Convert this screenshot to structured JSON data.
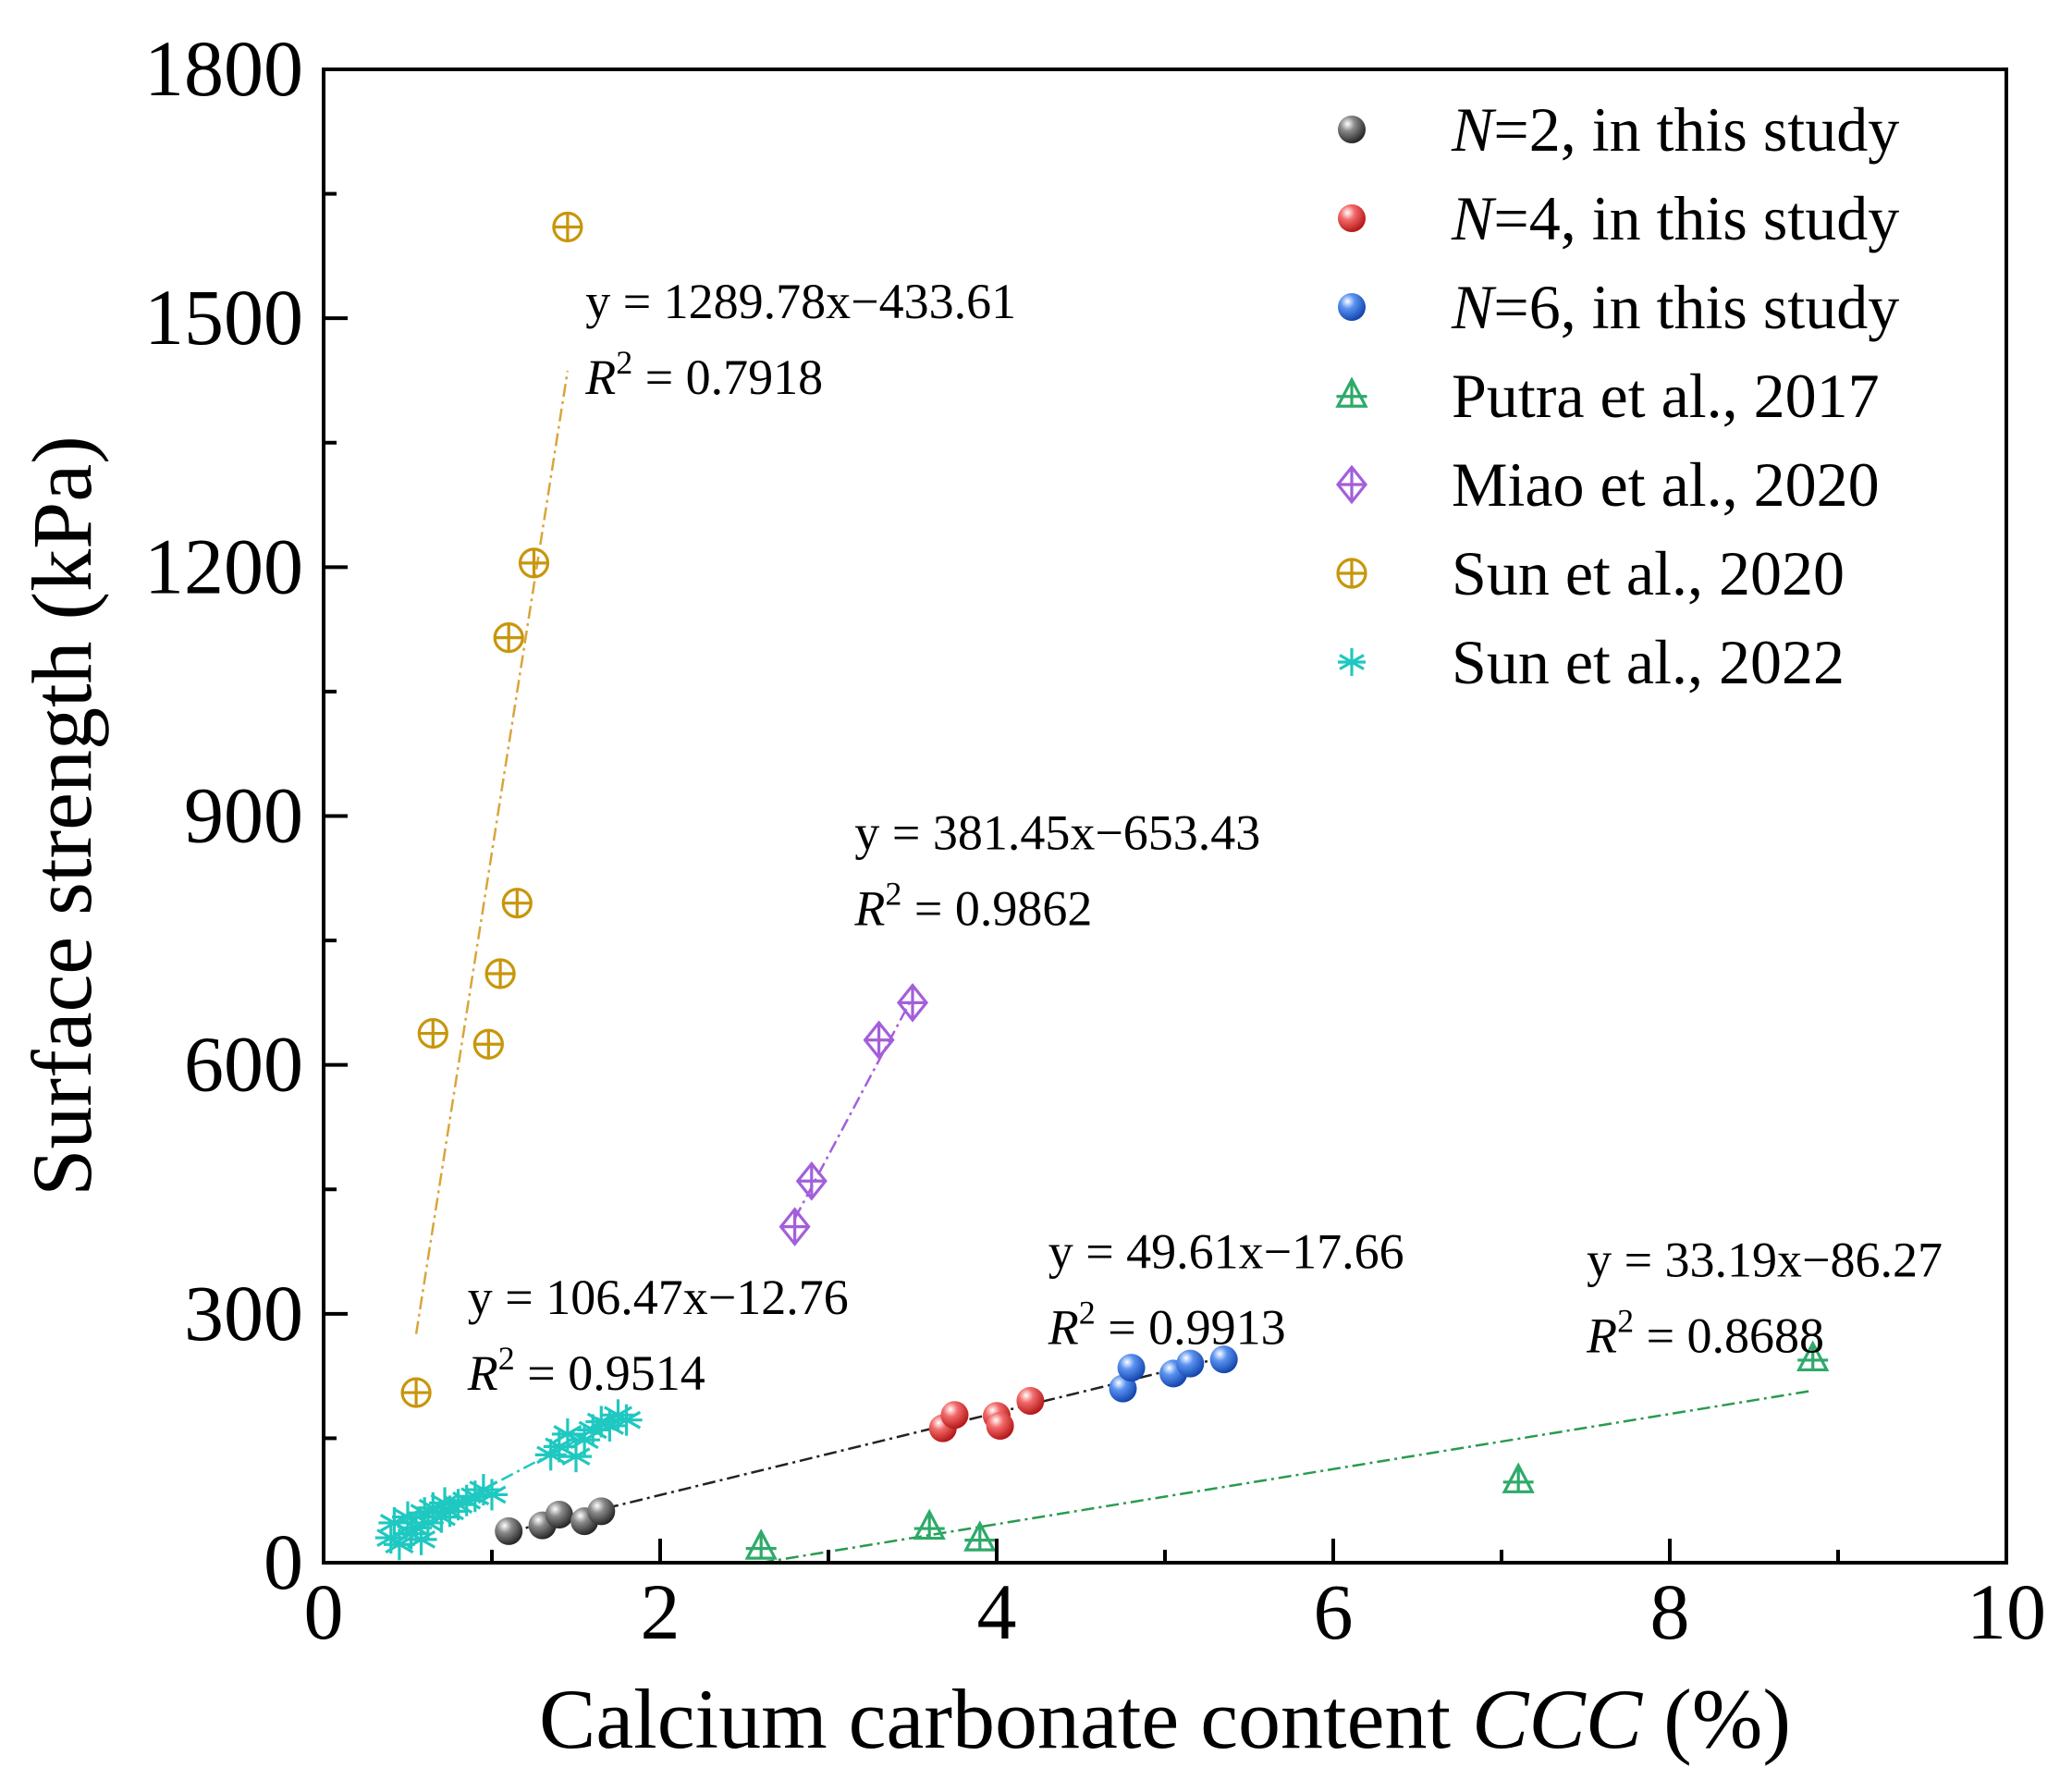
{
  "chart_data": {
    "type": "scatter",
    "title": "",
    "xlabel": "Calcium carbonate content ",
    "xlabel_italic": "CCC",
    "xlabel_suffix": " (%)",
    "ylabel": "Surface strength (kPa)",
    "xlim": [
      0,
      10
    ],
    "ylim": [
      0,
      1800
    ],
    "xticks": [
      0,
      2,
      4,
      6,
      8,
      10
    ],
    "yticks": [
      0,
      300,
      600,
      900,
      1200,
      1500,
      1800
    ],
    "legend_position": "top-right",
    "series": [
      {
        "name": "N=2, in this study",
        "name_italic": "N",
        "name_rest": "=2, in this study",
        "marker": "sphere",
        "color": "#3a3a3a",
        "points": [
          [
            1.1,
            38
          ],
          [
            1.3,
            45
          ],
          [
            1.4,
            58
          ],
          [
            1.55,
            50
          ],
          [
            1.65,
            62
          ]
        ]
      },
      {
        "name": "N=4, in this study",
        "name_italic": "N",
        "name_rest": "=4, in this study",
        "marker": "sphere",
        "color": "#e02525",
        "points": [
          [
            3.68,
            162
          ],
          [
            3.75,
            178
          ],
          [
            4.0,
            177
          ],
          [
            4.02,
            165
          ],
          [
            4.2,
            195
          ]
        ]
      },
      {
        "name": "N=6, in this study",
        "name_italic": "N",
        "name_rest": "=6, in this study",
        "marker": "sphere",
        "color": "#1f62e0",
        "points": [
          [
            4.75,
            210
          ],
          [
            4.8,
            235
          ],
          [
            5.05,
            228
          ],
          [
            5.15,
            240
          ],
          [
            5.35,
            245
          ]
        ]
      },
      {
        "name": "Putra et al., 2017",
        "marker": "triangle-cross",
        "color": "#2eaa6a",
        "points": [
          [
            2.6,
            18
          ],
          [
            3.6,
            42
          ],
          [
            3.9,
            28
          ],
          [
            7.1,
            98
          ],
          [
            8.85,
            245
          ]
        ]
      },
      {
        "name": "Miao et al., 2020",
        "marker": "diamond-cross",
        "color": "#a35fdb",
        "points": [
          [
            2.8,
            405
          ],
          [
            2.9,
            460
          ],
          [
            3.3,
            630
          ],
          [
            3.5,
            675
          ]
        ]
      },
      {
        "name": "Sun et al., 2020",
        "marker": "circle-cross",
        "color": "#c8960c",
        "points": [
          [
            0.55,
            205
          ],
          [
            0.65,
            638
          ],
          [
            0.98,
            625
          ],
          [
            1.05,
            710
          ],
          [
            1.1,
            1115
          ],
          [
            1.15,
            795
          ],
          [
            1.25,
            1205
          ],
          [
            1.45,
            1610
          ]
        ]
      },
      {
        "name": "Sun et al., 2022",
        "marker": "asterisk",
        "color": "#1fc8c0",
        "points": [
          [
            0.4,
            30
          ],
          [
            0.42,
            48
          ],
          [
            0.45,
            22
          ],
          [
            0.5,
            55
          ],
          [
            0.52,
            35
          ],
          [
            0.55,
            42
          ],
          [
            0.58,
            28
          ],
          [
            0.6,
            60
          ],
          [
            0.62,
            48
          ],
          [
            0.65,
            66
          ],
          [
            0.7,
            55
          ],
          [
            0.72,
            72
          ],
          [
            0.75,
            62
          ],
          [
            0.8,
            70
          ],
          [
            0.85,
            75
          ],
          [
            0.9,
            80
          ],
          [
            0.95,
            88
          ],
          [
            1.0,
            82
          ],
          [
            1.35,
            130
          ],
          [
            1.4,
            140
          ],
          [
            1.45,
            155
          ],
          [
            1.5,
            128
          ],
          [
            1.55,
            148
          ],
          [
            1.6,
            160
          ],
          [
            1.65,
            170
          ],
          [
            1.7,
            165
          ],
          [
            1.75,
            178
          ],
          [
            1.8,
            172
          ]
        ]
      }
    ],
    "fits": [
      {
        "series": "Sun et al., 2020",
        "color": "#d9a53a",
        "slope": 1289.78,
        "intercept": -433.61,
        "x_range": [
          0.55,
          1.45
        ],
        "eq_text": "y = 1289.78x−433.61",
        "r2_label": "R",
        "r2_sup": "2",
        "r2_value": " = 0.7918",
        "label_anchor": [
          1.6,
          1500
        ]
      },
      {
        "series": "Miao et al., 2020",
        "color": "#a35fdb",
        "slope": 381.45,
        "intercept": -653.43,
        "x_range": [
          2.8,
          3.5
        ],
        "eq_text": "y = 381.45x−653.43",
        "r2_label": "R",
        "r2_sup": "2",
        "r2_value": " = 0.9862",
        "label_anchor": [
          3.2,
          860
        ]
      },
      {
        "series": "Sun et al., 2022",
        "color": "#1fc8c0",
        "slope": 106.47,
        "intercept": -12.76,
        "x_range": [
          0.4,
          1.8
        ],
        "eq_text": "y = 106.47x−12.76",
        "r2_label": "R",
        "r2_sup": "2",
        "r2_value": " = 0.9514",
        "label_anchor": [
          0.9,
          300
        ]
      },
      {
        "series": "N=2,4,6, in this study",
        "color": "#222222",
        "slope": 49.61,
        "intercept": -17.66,
        "x_range": [
          1.1,
          5.35
        ],
        "eq_text": "y = 49.61x−17.66",
        "r2_label": "R",
        "r2_sup": "2",
        "r2_value": " = 0.9913",
        "label_anchor": [
          4.35,
          355
        ]
      },
      {
        "series": "Putra et al., 2017",
        "color": "#2a9a50",
        "slope": 33.19,
        "intercept": -86.27,
        "x_range": [
          2.6,
          8.85
        ],
        "eq_text": "y = 33.19x−86.27",
        "r2_label": "R",
        "r2_sup": "2",
        "r2_value": " = 0.8688",
        "label_anchor": [
          7.55,
          345
        ]
      }
    ]
  }
}
